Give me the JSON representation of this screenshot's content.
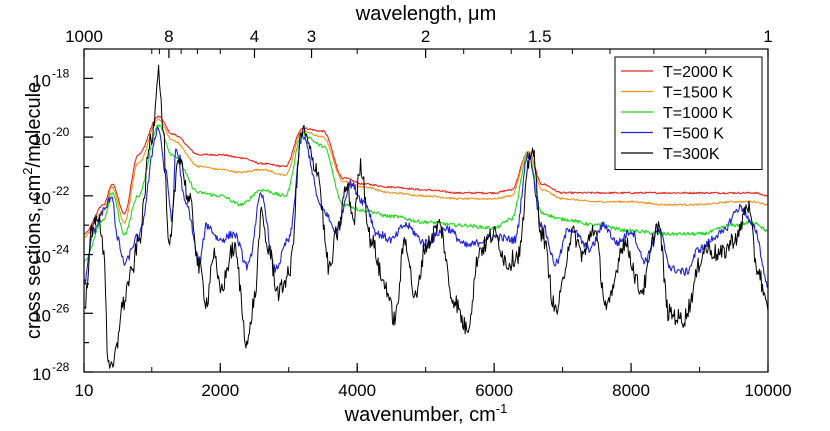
{
  "chart_data": {
    "type": "line",
    "title": "",
    "xlabel": "wavenumber, cm",
    "xlabel_sup": "-1",
    "ylabel": "cross sections, cm",
    "ylabel_sup": "2",
    "ylabel_tail": "/molecule",
    "top_xlabel": "wavelength, μm",
    "xlim": [
      10,
      10000
    ],
    "ylim_exp": [
      -28,
      -17
    ],
    "y_scale": "log",
    "grid": false,
    "legend_position": "top-right",
    "x_ticks": [
      {
        "value": 10,
        "label": "10"
      },
      {
        "value": 2000,
        "label": "2000"
      },
      {
        "value": 4000,
        "label": "4000"
      },
      {
        "value": 6000,
        "label": "6000"
      },
      {
        "value": 8000,
        "label": "8000"
      },
      {
        "value": 10000,
        "label": "10000"
      }
    ],
    "y_ticks": [
      {
        "exp": -28,
        "base": "10",
        "sup": "-28"
      },
      {
        "exp": -26,
        "base": "10",
        "sup": "-26"
      },
      {
        "exp": -24,
        "base": "10",
        "sup": "-24"
      },
      {
        "exp": -22,
        "base": "10",
        "sup": "-22"
      },
      {
        "exp": -20,
        "base": "10",
        "sup": "-20"
      },
      {
        "exp": -18,
        "base": "10",
        "sup": "-18"
      }
    ],
    "top_ticks": [
      {
        "um": 1000,
        "label": "1000"
      },
      {
        "um": 8,
        "label": "8"
      },
      {
        "um": 4,
        "label": "4"
      },
      {
        "um": 3,
        "label": "3"
      },
      {
        "um": 2,
        "label": "2"
      },
      {
        "um": 1.5,
        "label": "1.5"
      },
      {
        "um": 1,
        "label": "1"
      }
    ],
    "series": [
      {
        "name": "T=2000 K",
        "color": "#e8251f",
        "points": [
          [
            10,
            -23.3
          ],
          [
            300,
            -22.3
          ],
          [
            420,
            -21.6
          ],
          [
            600,
            -22.6
          ],
          [
            800,
            -20.6
          ],
          [
            1100,
            -19.3
          ],
          [
            1300,
            -19.9
          ],
          [
            1700,
            -20.6
          ],
          [
            2000,
            -20.6
          ],
          [
            2300,
            -20.7
          ],
          [
            2600,
            -20.9
          ],
          [
            2950,
            -21.0
          ],
          [
            3200,
            -19.7
          ],
          [
            3500,
            -19.8
          ],
          [
            3800,
            -21.4
          ],
          [
            4100,
            -21.6
          ],
          [
            4500,
            -21.7
          ],
          [
            5000,
            -21.8
          ],
          [
            5500,
            -21.9
          ],
          [
            6000,
            -21.9
          ],
          [
            6250,
            -21.8
          ],
          [
            6500,
            -20.5
          ],
          [
            6700,
            -21.6
          ],
          [
            7000,
            -21.9
          ],
          [
            7500,
            -21.9
          ],
          [
            8000,
            -21.9
          ],
          [
            8500,
            -21.9
          ],
          [
            9000,
            -21.9
          ],
          [
            9500,
            -21.9
          ],
          [
            9800,
            -21.9
          ],
          [
            10000,
            -22.0
          ]
        ]
      },
      {
        "name": "T=1500 K",
        "color": "#f0941c",
        "points": [
          [
            10,
            -23.4
          ],
          [
            300,
            -22.5
          ],
          [
            420,
            -21.7
          ],
          [
            600,
            -22.9
          ],
          [
            800,
            -20.9
          ],
          [
            1100,
            -19.4
          ],
          [
            1300,
            -20.1
          ],
          [
            1700,
            -21.0
          ],
          [
            2000,
            -21.1
          ],
          [
            2300,
            -21.2
          ],
          [
            2600,
            -21.1
          ],
          [
            2950,
            -21.3
          ],
          [
            3200,
            -19.8
          ],
          [
            3500,
            -20.0
          ],
          [
            3800,
            -21.5
          ],
          [
            4100,
            -21.7
          ],
          [
            4500,
            -21.9
          ],
          [
            5000,
            -22.0
          ],
          [
            5500,
            -22.1
          ],
          [
            6000,
            -22.1
          ],
          [
            6250,
            -22.0
          ],
          [
            6500,
            -20.5
          ],
          [
            6700,
            -21.8
          ],
          [
            7000,
            -22.1
          ],
          [
            7500,
            -22.2
          ],
          [
            8000,
            -22.2
          ],
          [
            8500,
            -22.3
          ],
          [
            9000,
            -22.3
          ],
          [
            9500,
            -22.2
          ],
          [
            9800,
            -22.2
          ],
          [
            10000,
            -22.3
          ]
        ]
      },
      {
        "name": "T=1000 K",
        "color": "#22d81c",
        "points": [
          [
            10,
            -24.2
          ],
          [
            300,
            -22.8
          ],
          [
            420,
            -21.9
          ],
          [
            600,
            -23.3
          ],
          [
            800,
            -22.0
          ],
          [
            1100,
            -19.6
          ],
          [
            1300,
            -20.6
          ],
          [
            1700,
            -21.9
          ],
          [
            2000,
            -22.0
          ],
          [
            2300,
            -22.3
          ],
          [
            2600,
            -21.8
          ],
          [
            2950,
            -22.0
          ],
          [
            3200,
            -19.9
          ],
          [
            3500,
            -20.3
          ],
          [
            3800,
            -22.3
          ],
          [
            4100,
            -22.5
          ],
          [
            4500,
            -22.7
          ],
          [
            5000,
            -22.9
          ],
          [
            5500,
            -23.0
          ],
          [
            6000,
            -23.1
          ],
          [
            6250,
            -22.8
          ],
          [
            6500,
            -20.6
          ],
          [
            6700,
            -22.6
          ],
          [
            7000,
            -22.8
          ],
          [
            7500,
            -23.0
          ],
          [
            8000,
            -23.2
          ],
          [
            8500,
            -23.3
          ],
          [
            9000,
            -23.3
          ],
          [
            9500,
            -23.0
          ],
          [
            9800,
            -22.9
          ],
          [
            10000,
            -23.2
          ]
        ]
      },
      {
        "name": "T=500 K",
        "color": "#1f22d8",
        "points": [
          [
            10,
            -25.0
          ],
          [
            150,
            -23.2
          ],
          [
            300,
            -22.5
          ],
          [
            420,
            -22.0
          ],
          [
            500,
            -23.5
          ],
          [
            600,
            -24.3
          ],
          [
            800,
            -23.4
          ],
          [
            1100,
            -19.7
          ],
          [
            1200,
            -21.2
          ],
          [
            1300,
            -22.8
          ],
          [
            1350,
            -20.4
          ],
          [
            1500,
            -22.3
          ],
          [
            1700,
            -24.2
          ],
          [
            1800,
            -23.0
          ],
          [
            2000,
            -23.5
          ],
          [
            2200,
            -23.3
          ],
          [
            2400,
            -24.4
          ],
          [
            2600,
            -22.0
          ],
          [
            2800,
            -24.5
          ],
          [
            3000,
            -23.5
          ],
          [
            3200,
            -20.0
          ],
          [
            3500,
            -22.5
          ],
          [
            3700,
            -23.2
          ],
          [
            3900,
            -21.6
          ],
          [
            4100,
            -22.2
          ],
          [
            4300,
            -23.3
          ],
          [
            4500,
            -23.5
          ],
          [
            4700,
            -23.0
          ],
          [
            5000,
            -23.6
          ],
          [
            5300,
            -23.1
          ],
          [
            5600,
            -23.7
          ],
          [
            6000,
            -23.4
          ],
          [
            6300,
            -23.5
          ],
          [
            6500,
            -20.6
          ],
          [
            6700,
            -23.0
          ],
          [
            6900,
            -24.3
          ],
          [
            7100,
            -23.1
          ],
          [
            7400,
            -23.8
          ],
          [
            7600,
            -23.0
          ],
          [
            7800,
            -23.6
          ],
          [
            8000,
            -23.2
          ],
          [
            8200,
            -24.2
          ],
          [
            8400,
            -23.2
          ],
          [
            8600,
            -24.5
          ],
          [
            8800,
            -24.6
          ],
          [
            9000,
            -23.8
          ],
          [
            9300,
            -23.3
          ],
          [
            9600,
            -22.4
          ],
          [
            9800,
            -23.1
          ],
          [
            10000,
            -25.0
          ]
        ]
      },
      {
        "name": "T=300K",
        "color": "#000000",
        "points": [
          [
            10,
            -26.0
          ],
          [
            120,
            -23.3
          ],
          [
            200,
            -22.6
          ],
          [
            300,
            -23.8
          ],
          [
            360,
            -27.5
          ],
          [
            420,
            -28.0
          ],
          [
            480,
            -27.3
          ],
          [
            560,
            -25.8
          ],
          [
            700,
            -24.7
          ],
          [
            800,
            -23.6
          ],
          [
            1000,
            -20.0
          ],
          [
            1100,
            -17.7
          ],
          [
            1160,
            -19.6
          ],
          [
            1250,
            -23.8
          ],
          [
            1400,
            -20.6
          ],
          [
            1550,
            -22.2
          ],
          [
            1700,
            -24.5
          ],
          [
            1800,
            -25.6
          ],
          [
            1900,
            -24.0
          ],
          [
            2000,
            -25.2
          ],
          [
            2200,
            -23.8
          ],
          [
            2400,
            -27.0
          ],
          [
            2500,
            -25.5
          ],
          [
            2600,
            -22.7
          ],
          [
            2700,
            -23.8
          ],
          [
            2850,
            -25.3
          ],
          [
            3000,
            -24.7
          ],
          [
            3200,
            -19.8
          ],
          [
            3400,
            -21.0
          ],
          [
            3600,
            -24.5
          ],
          [
            3700,
            -23.3
          ],
          [
            3850,
            -21.7
          ],
          [
            3950,
            -22.8
          ],
          [
            4050,
            -21.0
          ],
          [
            4200,
            -23.5
          ],
          [
            4400,
            -25.0
          ],
          [
            4550,
            -26.2
          ],
          [
            4700,
            -23.5
          ],
          [
            4850,
            -25.5
          ],
          [
            5000,
            -23.7
          ],
          [
            5200,
            -23.0
          ],
          [
            5400,
            -25.5
          ],
          [
            5600,
            -26.5
          ],
          [
            5800,
            -23.8
          ],
          [
            6000,
            -23.3
          ],
          [
            6200,
            -24.3
          ],
          [
            6350,
            -24.0
          ],
          [
            6550,
            -20.4
          ],
          [
            6700,
            -23.3
          ],
          [
            6900,
            -25.9
          ],
          [
            7150,
            -23.3
          ],
          [
            7300,
            -24.0
          ],
          [
            7450,
            -23.1
          ],
          [
            7650,
            -25.8
          ],
          [
            7900,
            -23.6
          ],
          [
            8150,
            -25.2
          ],
          [
            8400,
            -23.0
          ],
          [
            8550,
            -26.0
          ],
          [
            8750,
            -26.2
          ],
          [
            9100,
            -23.8
          ],
          [
            9300,
            -24.0
          ],
          [
            9550,
            -23.4
          ],
          [
            9700,
            -22.3
          ],
          [
            9850,
            -24.5
          ],
          [
            10000,
            -25.9
          ]
        ]
      }
    ]
  }
}
